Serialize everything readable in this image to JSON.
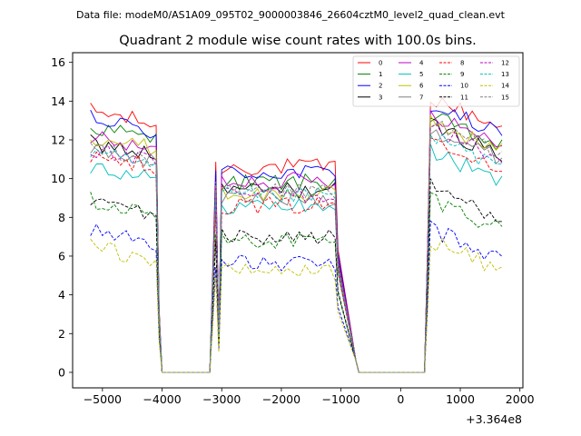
{
  "chart_data": {
    "type": "line",
    "suptitle": "Data file: modeM0/AS1A09_095T02_9000003846_26604cztM0_level2_quad_clean.evt",
    "title": "Quadrant 2 module wise count rates with 100.0s bins.",
    "xlabel": "",
    "ylabel": "",
    "x_offset_label": "+3.364e8",
    "xlim": [
      -5500,
      2050
    ],
    "ylim": [
      -0.8,
      16.5
    ],
    "xticks": [
      -5000,
      -4000,
      -3000,
      -2000,
      -1000,
      0,
      1000,
      2000
    ],
    "yticks": [
      0,
      2,
      4,
      6,
      8,
      10,
      12,
      14,
      16
    ],
    "legend_position": "top-right",
    "segments": [
      {
        "x_start": -5200,
        "x_end": -4100
      },
      {
        "x_start": -3100,
        "x_end": -1100
      },
      {
        "x_start": 500,
        "x_end": 1700
      }
    ],
    "gap_times": [
      -4000,
      -3900,
      -3800,
      -3700,
      -3600,
      -3500,
      -3400,
      -3300,
      -3200,
      -700,
      -600,
      -500,
      -400,
      -300,
      -200,
      -100,
      0,
      100,
      200,
      300,
      400
    ],
    "series": [
      {
        "name": "0",
        "color": "#ff0000",
        "dash": "solid",
        "levels": [
          13.2,
          10.6,
          14.2
        ]
      },
      {
        "name": "1",
        "color": "#008000",
        "dash": "solid",
        "levels": [
          12.4,
          9.8,
          13.2
        ]
      },
      {
        "name": "2",
        "color": "#0000ff",
        "dash": "solid",
        "levels": [
          12.8,
          10.3,
          13.8
        ]
      },
      {
        "name": "3",
        "color": "#000000",
        "dash": "solid",
        "levels": [
          11.6,
          9.4,
          12.8
        ]
      },
      {
        "name": "4",
        "color": "#bf00bf",
        "dash": "solid",
        "levels": [
          11.8,
          9.9,
          13.4
        ]
      },
      {
        "name": "5",
        "color": "#00bfbf",
        "dash": "solid",
        "levels": [
          10.4,
          8.6,
          11.4
        ]
      },
      {
        "name": "6",
        "color": "#bfbf00",
        "dash": "solid",
        "levels": [
          11.9,
          9.2,
          13.0
        ]
      },
      {
        "name": "7",
        "color": "#808080",
        "dash": "solid",
        "levels": [
          11.3,
          9.0,
          12.6
        ]
      },
      {
        "name": "8",
        "color": "#ff0000",
        "dash": "dashed",
        "levels": [
          11.0,
          8.6,
          12.2
        ]
      },
      {
        "name": "9",
        "color": "#008000",
        "dash": "dashed",
        "levels": [
          8.6,
          6.8,
          9.0
        ]
      },
      {
        "name": "10",
        "color": "#0000ff",
        "dash": "dashed",
        "levels": [
          7.1,
          5.6,
          7.4
        ]
      },
      {
        "name": "11",
        "color": "#000000",
        "dash": "dashed",
        "levels": [
          8.6,
          7.0,
          9.6
        ]
      },
      {
        "name": "12",
        "color": "#bf00bf",
        "dash": "dashed",
        "levels": [
          11.2,
          9.2,
          12.6
        ]
      },
      {
        "name": "13",
        "color": "#00bfbf",
        "dash": "dashed",
        "levels": [
          11.0,
          9.1,
          12.2
        ]
      },
      {
        "name": "14",
        "color": "#bfbf00",
        "dash": "dashed",
        "levels": [
          6.2,
          5.2,
          6.8
        ]
      },
      {
        "name": "15",
        "color": "#808080",
        "dash": "dashed",
        "levels": [
          11.4,
          9.4,
          12.8
        ]
      }
    ]
  }
}
